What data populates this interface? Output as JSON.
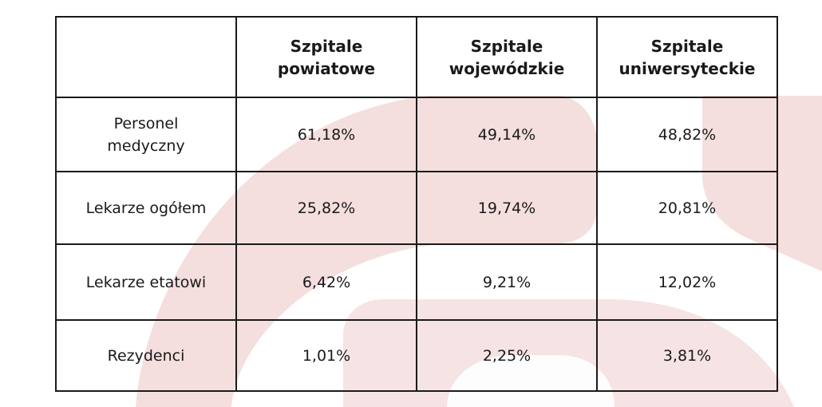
{
  "colors": {
    "background": "#ffffff",
    "watermark": "#f5dede",
    "border": "#1a1a1a",
    "text": "#1a1a1a"
  },
  "table": {
    "headers": [
      "",
      "Szpitale powiatowe",
      "Szpitale wojewódzkie",
      "Szpitale uniwersyteckie"
    ],
    "rows": [
      {
        "label": "Personel medyczny",
        "values": [
          "61,18%",
          "49,14%",
          "48,82%"
        ]
      },
      {
        "label": "Lekarze ogółem",
        "values": [
          "25,82%",
          "19,74%",
          "20,81%"
        ]
      },
      {
        "label": "Lekarze etatowi",
        "values": [
          "6,42%",
          "9,21%",
          "12,02%"
        ]
      },
      {
        "label": "Rezydenci",
        "values": [
          "1,01%",
          "2,25%",
          "3,81%"
        ]
      }
    ]
  }
}
